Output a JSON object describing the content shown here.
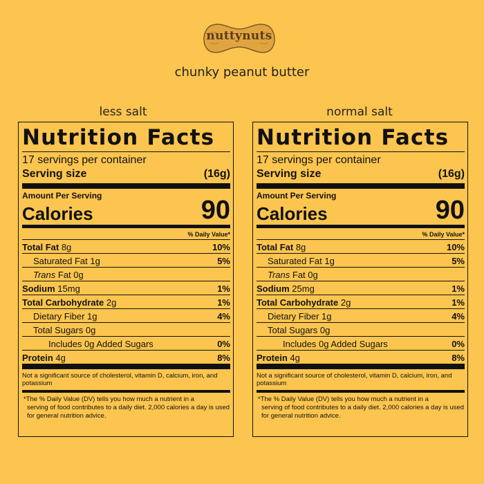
{
  "brand": {
    "logo_text": "nuttynuts",
    "product": "chunky peanut butter"
  },
  "colors": {
    "background": "#fcc54f",
    "logo_fill": "#e0a540",
    "logo_outline": "#7a5a2a"
  },
  "labels": [
    {
      "variant": "less salt",
      "title": "Nutrition Facts",
      "servings": "17 servings per container",
      "serving_size_label": "Serving size",
      "serving_size_value": "(16g)",
      "amount_per_serving": "Amount Per Serving",
      "calories_label": "Calories",
      "calories_value": "90",
      "dv_header": "% Daily Value*",
      "rows": {
        "total_fat": {
          "name": "Total Fat",
          "amount": "8g",
          "pct": "10%"
        },
        "sat_fat": {
          "name": "Saturated Fat 1g",
          "pct": "5%"
        },
        "trans_fat": {
          "name_italic": "Trans",
          "name_rest": " Fat 0g"
        },
        "sodium": {
          "name": "Sodium",
          "amount": "15mg",
          "pct": "1%"
        },
        "carb": {
          "name": "Total Carbohydrate",
          "amount": "2g",
          "pct": "1%"
        },
        "fiber": {
          "name": "Dietary Fiber 1g",
          "pct": "4%"
        },
        "sugars": {
          "name": "Total Sugars 0g"
        },
        "added_sugars": {
          "name": "Includes 0g Added Sugars",
          "pct": "0%"
        },
        "protein": {
          "name": "Protein",
          "amount": "4g",
          "pct": "8%"
        }
      },
      "note1": "Not a significant source of cholesterol, vitamin D, calcium, iron, and potassium",
      "note2_first": "*The % Daily Value (DV) tells you how much a nutrient in a",
      "note2_rest": "serving of food contributes to a daily diet. 2,000 calories a day is used for general nutrition advice."
    },
    {
      "variant": "normal salt",
      "title": "Nutrition Facts",
      "servings": "17 servings per container",
      "serving_size_label": "Serving size",
      "serving_size_value": "(16g)",
      "amount_per_serving": "Amount Per Serving",
      "calories_label": "Calories",
      "calories_value": "90",
      "dv_header": "% Daily Value*",
      "rows": {
        "total_fat": {
          "name": "Total Fat",
          "amount": "8g",
          "pct": "10%"
        },
        "sat_fat": {
          "name": "Saturated Fat 1g",
          "pct": "5%"
        },
        "trans_fat": {
          "name_italic": "Trans",
          "name_rest": " Fat 0g"
        },
        "sodium": {
          "name": "Sodium",
          "amount": "25mg",
          "pct": "1%"
        },
        "carb": {
          "name": "Total Carbohydrate",
          "amount": "2g",
          "pct": "1%"
        },
        "fiber": {
          "name": "Dietary Fiber 1g",
          "pct": "4%"
        },
        "sugars": {
          "name": "Total Sugars 0g"
        },
        "added_sugars": {
          "name": "Includes 0g Added Sugars",
          "pct": "0%"
        },
        "protein": {
          "name": "Protein",
          "amount": "4g",
          "pct": "8%"
        }
      },
      "note1": "Not a significant source of cholesterol, vitamin D, calcium, iron, and potassium",
      "note2_first": "*The % Daily Value (DV) tells you how much a nutrient in a",
      "note2_rest": "serving of food contributes to a daily diet. 2,000 calories a day is used for general nutrition advice."
    }
  ]
}
